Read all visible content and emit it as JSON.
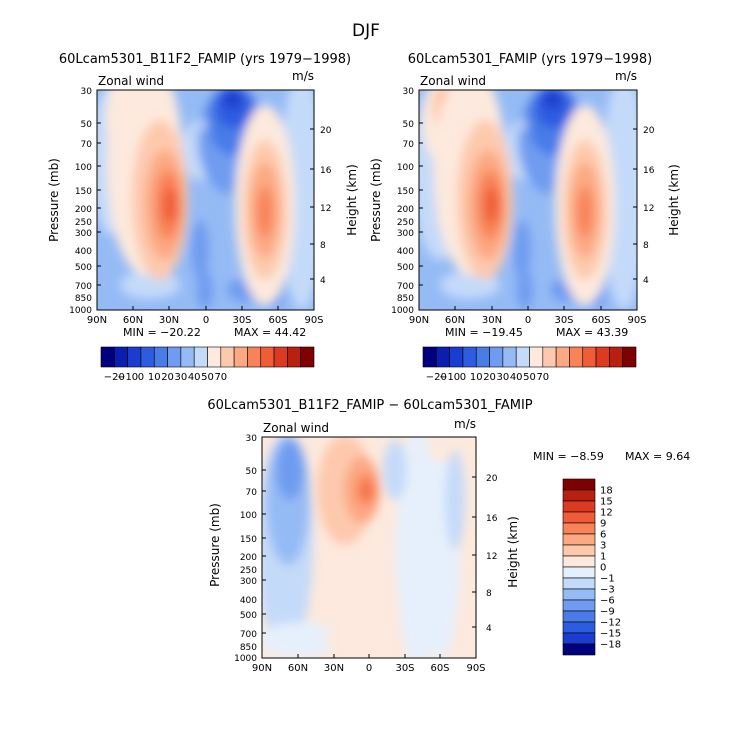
{
  "figure": {
    "title": "DJF"
  },
  "chart_data": [
    {
      "type": "heatmap",
      "title": "60Lcam5301_B11F2_FAMIP (yrs 1979−1998)",
      "left_label": "Zonal wind",
      "right_label": "m/s",
      "ylabel": "Pressure (mb)",
      "ylabel_right": "Height (km)",
      "x_ticks": [
        "90N",
        "60N",
        "30N",
        "0",
        "30S",
        "60S",
        "90S"
      ],
      "y_ticks": [
        "30",
        "50",
        "70",
        "100",
        "150",
        "200",
        "250",
        "300",
        "400",
        "500",
        "700",
        "850",
        "1000"
      ],
      "height_ticks": [
        "20",
        "16",
        "12",
        "8",
        "4"
      ],
      "stats": {
        "min_label": "MIN = −20.22",
        "max_label": "MAX =  44.42",
        "min": -20.22,
        "max": 44.42
      },
      "colorbar": {
        "tick_labels": [
          "−20",
          "−10",
          "0",
          "10",
          "20",
          "30",
          "40",
          "50",
          "70"
        ],
        "colors": [
          "#00007f",
          "#0a1fb0",
          "#1a3cd0",
          "#2e5ce0",
          "#4a7ce8",
          "#6f9cf0",
          "#95bbf5",
          "#c4daf9",
          "#fde9dd",
          "#fdc9ad",
          "#fca882",
          "#f88359",
          "#f05c38",
          "#dd3a22",
          "#b8200f",
          "#7f0000"
        ]
      }
    },
    {
      "type": "heatmap",
      "title": "60Lcam5301_FAMIP (yrs 1979−1998)",
      "left_label": "Zonal wind",
      "right_label": "m/s",
      "ylabel": "Pressure (mb)",
      "ylabel_right": "Height (km)",
      "x_ticks": [
        "90N",
        "60N",
        "30N",
        "0",
        "30S",
        "60S",
        "90S"
      ],
      "y_ticks": [
        "30",
        "50",
        "70",
        "100",
        "150",
        "200",
        "250",
        "300",
        "400",
        "500",
        "700",
        "850",
        "1000"
      ],
      "height_ticks": [
        "20",
        "16",
        "12",
        "8",
        "4"
      ],
      "stats": {
        "min_label": "MIN = −19.45",
        "max_label": "MAX =  43.39",
        "min": -19.45,
        "max": 43.39
      },
      "colorbar": {
        "tick_labels": [
          "−20",
          "−10",
          "0",
          "10",
          "20",
          "30",
          "40",
          "50",
          "70"
        ],
        "colors": [
          "#00007f",
          "#0a1fb0",
          "#1a3cd0",
          "#2e5ce0",
          "#4a7ce8",
          "#6f9cf0",
          "#95bbf5",
          "#c4daf9",
          "#fde9dd",
          "#fdc9ad",
          "#fca882",
          "#f88359",
          "#f05c38",
          "#dd3a22",
          "#b8200f",
          "#7f0000"
        ]
      }
    },
    {
      "type": "heatmap",
      "title": "60Lcam5301_B11F2_FAMIP − 60Lcam5301_FAMIP",
      "left_label": "Zonal wind",
      "right_label": "m/s",
      "ylabel": "Pressure (mb)",
      "ylabel_right": "Height (km)",
      "x_ticks": [
        "90N",
        "60N",
        "30N",
        "0",
        "30S",
        "60S",
        "90S"
      ],
      "y_ticks": [
        "30",
        "50",
        "70",
        "100",
        "150",
        "200",
        "250",
        "300",
        "400",
        "500",
        "700",
        "850",
        "1000"
      ],
      "height_ticks": [
        "20",
        "16",
        "12",
        "8",
        "4"
      ],
      "stats": {
        "min_label": "MIN =  −8.59",
        "max_label": "MAX =   9.64",
        "min": -8.59,
        "max": 9.64
      },
      "colorbar": {
        "tick_labels": [
          "18",
          "15",
          "12",
          "9",
          "6",
          "3",
          "1",
          "0",
          "−1",
          "−3",
          "−6",
          "−9",
          "−12",
          "−15",
          "−18"
        ],
        "colors": [
          "#7f0000",
          "#b8200f",
          "#dd3a22",
          "#f05c38",
          "#f88359",
          "#fca882",
          "#fdc9ad",
          "#fde9dd",
          "#e6f0fc",
          "#c4daf9",
          "#95bbf5",
          "#6f9cf0",
          "#4a7ce8",
          "#2e5ce0",
          "#1a3cd0",
          "#00007f"
        ]
      }
    }
  ]
}
